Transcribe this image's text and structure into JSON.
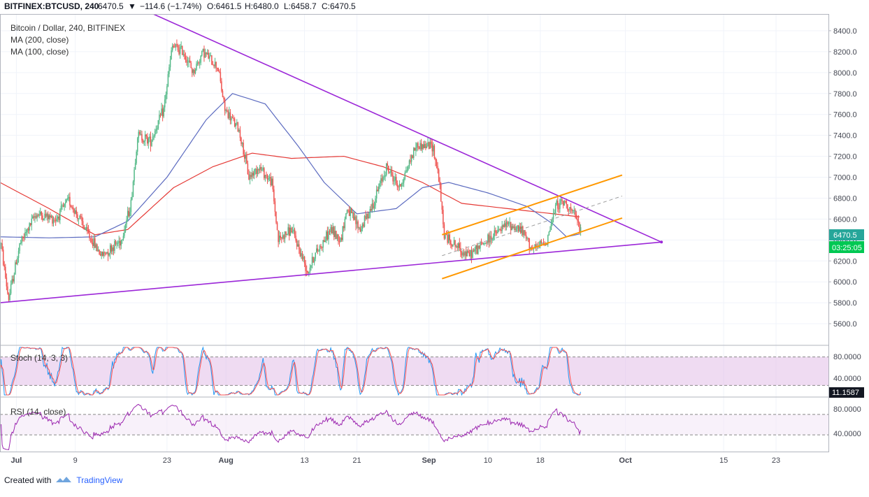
{
  "header": {
    "symbol": "BITFINEX:BTCUSD, 240",
    "last": "6470.5",
    "change": "−114.6 (−1.74%)",
    "open": "O:6461.5",
    "high": "H:6480.0",
    "low": "L:6458.7",
    "close": "C:6470.5"
  },
  "legend": {
    "title": "Bitcoin / Dollar, 240, BITFINEX",
    "ma200": "MA (200, close)",
    "ma100": "MA (100, close)"
  },
  "price_badge": "6470.5",
  "countdown_badge": "03:25:05",
  "stoch": {
    "label": "Stoch (14, 3, 3)",
    "badge": "11.1587",
    "upper": "80.0000",
    "lower": "40.0000"
  },
  "rsi": {
    "label": "RSI (14, close)",
    "upper": "80.0000",
    "lower": "40.0000"
  },
  "footer": {
    "created_with": "Created with",
    "brand": "TradingView"
  },
  "colors": {
    "up": "#26a69a",
    "up_candle": "#53b987",
    "down": "#ef5350",
    "ma200": "#e53935",
    "ma100": "#5c6bc0",
    "triangle": "#9c27d8",
    "channel": "#ff9800",
    "stoch_k": "#2196f3",
    "stoch_d": "#ff5252",
    "rsi": "#9c27b0",
    "band": "#e1bee7",
    "countdown": "#00c853"
  },
  "chart_data": {
    "type": "candlestick",
    "title": "Bitcoin / Dollar, 240, BITFINEX",
    "y_ticks": [
      "8400.0",
      "8200.0",
      "8000.0",
      "7800.0",
      "7600.0",
      "7400.0",
      "7200.0",
      "7000.0",
      "6800.0",
      "6600.0",
      "6400.0",
      "6200.0",
      "6000.0",
      "5800.0",
      "5600.0"
    ],
    "ylim": [
      5400,
      8560
    ],
    "x_ticks": [
      "Jul",
      "9",
      "23",
      "Aug",
      "13",
      "21",
      "Sep",
      "10",
      "18",
      "Oct",
      "15",
      "23"
    ],
    "x_tick_days": [
      0,
      9,
      23,
      32,
      44,
      52,
      63,
      72,
      80,
      93,
      108,
      116
    ],
    "days_visible": [
      -2.5,
      124
    ],
    "anchors": [
      {
        "day": -2.4,
        "price": 6380
      },
      {
        "day": -1.2,
        "price": 5830
      },
      {
        "day": 0.5,
        "price": 6350
      },
      {
        "day": 3,
        "price": 6650
      },
      {
        "day": 6,
        "price": 6600
      },
      {
        "day": 8,
        "price": 6780
      },
      {
        "day": 11,
        "price": 6450
      },
      {
        "day": 13,
        "price": 6250
      },
      {
        "day": 16,
        "price": 6400
      },
      {
        "day": 17.5,
        "price": 6750
      },
      {
        "day": 18.5,
        "price": 7400
      },
      {
        "day": 20.5,
        "price": 7350
      },
      {
        "day": 22.5,
        "price": 7650
      },
      {
        "day": 23.8,
        "price": 8250
      },
      {
        "day": 25.5,
        "price": 8200
      },
      {
        "day": 27,
        "price": 8000
      },
      {
        "day": 28.5,
        "price": 8200
      },
      {
        "day": 30.8,
        "price": 8050
      },
      {
        "day": 31.8,
        "price": 7650
      },
      {
        "day": 34,
        "price": 7450
      },
      {
        "day": 35.5,
        "price": 7000
      },
      {
        "day": 37,
        "price": 7100
      },
      {
        "day": 39,
        "price": 6950
      },
      {
        "day": 40,
        "price": 6400
      },
      {
        "day": 42,
        "price": 6500
      },
      {
        "day": 44.5,
        "price": 6100
      },
      {
        "day": 45.5,
        "price": 6250
      },
      {
        "day": 48,
        "price": 6500
      },
      {
        "day": 49.5,
        "price": 6400
      },
      {
        "day": 50.5,
        "price": 6700
      },
      {
        "day": 52.5,
        "price": 6500
      },
      {
        "day": 54.5,
        "price": 6750
      },
      {
        "day": 56.5,
        "price": 7100
      },
      {
        "day": 58.5,
        "price": 6900
      },
      {
        "day": 61,
        "price": 7300
      },
      {
        "day": 63.6,
        "price": 7300
      },
      {
        "day": 64.5,
        "price": 7000
      },
      {
        "day": 65.3,
        "price": 6450
      },
      {
        "day": 67,
        "price": 6350
      },
      {
        "day": 69,
        "price": 6250
      },
      {
        "day": 71,
        "price": 6350
      },
      {
        "day": 73,
        "price": 6450
      },
      {
        "day": 75,
        "price": 6550
      },
      {
        "day": 77,
        "price": 6500
      },
      {
        "day": 79,
        "price": 6300
      },
      {
        "day": 81,
        "price": 6400
      },
      {
        "day": 82.5,
        "price": 6750
      },
      {
        "day": 84,
        "price": 6750
      },
      {
        "day": 85.5,
        "price": 6600
      },
      {
        "day": 86.2,
        "price": 6470
      }
    ],
    "ma200": [
      [
        -2.5,
        6950
      ],
      [
        5,
        6700
      ],
      [
        12,
        6450
      ],
      [
        17,
        6500
      ],
      [
        24,
        6900
      ],
      [
        30,
        7100
      ],
      [
        36,
        7230
      ],
      [
        42,
        7180
      ],
      [
        50,
        7200
      ],
      [
        56,
        7100
      ],
      [
        62,
        6950
      ],
      [
        68,
        6750
      ],
      [
        75,
        6700
      ],
      [
        82,
        6650
      ],
      [
        86.2,
        6620
      ]
    ],
    "ma100": [
      [
        -2.5,
        6430
      ],
      [
        5,
        6420
      ],
      [
        12,
        6430
      ],
      [
        17,
        6580
      ],
      [
        23,
        7000
      ],
      [
        29,
        7550
      ],
      [
        33,
        7800
      ],
      [
        38,
        7700
      ],
      [
        43,
        7300
      ],
      [
        47,
        6950
      ],
      [
        52,
        6650
      ],
      [
        58,
        6700
      ],
      [
        62,
        6900
      ],
      [
        66,
        6950
      ],
      [
        72,
        6850
      ],
      [
        78,
        6720
      ],
      [
        82,
        6550
      ],
      [
        84,
        6430
      ],
      [
        86.2,
        6460
      ]
    ],
    "triangle_upper": [
      [
        15.2,
        8720
      ],
      [
        98.5,
        6380
      ]
    ],
    "triangle_lower": [
      [
        -2.5,
        5800
      ],
      [
        98.5,
        6380
      ]
    ],
    "channel_upper": [
      [
        65,
        6450
      ],
      [
        92.5,
        7020
      ]
    ],
    "channel_lower": [
      [
        65,
        6030
      ],
      [
        92.5,
        6610
      ]
    ],
    "channel_mid": [
      [
        65,
        6250
      ],
      [
        92.5,
        6820
      ]
    ],
    "stoch_band": [
      20,
      80
    ],
    "rsi_band": [
      30,
      70
    ]
  }
}
